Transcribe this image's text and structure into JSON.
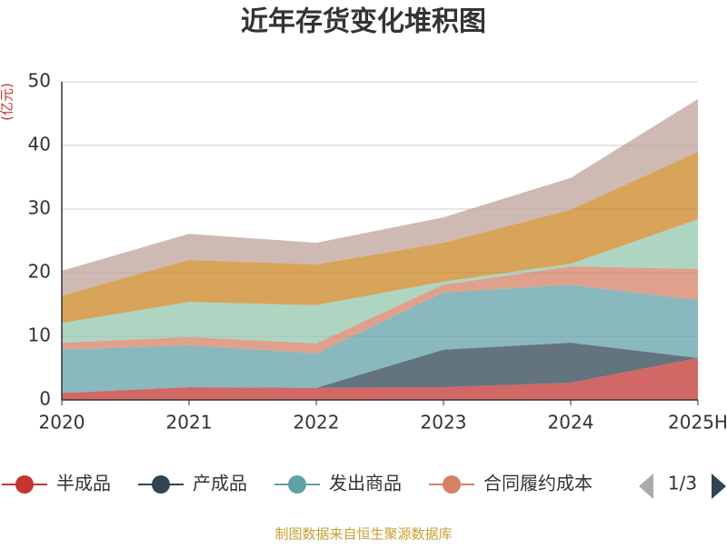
{
  "chart_data": {
    "type": "area",
    "stacked": true,
    "title": "近年存货变化堆积图",
    "y_unit": "(亿元)",
    "categories": [
      "2020",
      "2021",
      "2022",
      "2023",
      "2024",
      "2025H"
    ],
    "series": [
      {
        "name": "半成品",
        "color": "#c23531",
        "values": [
          1.1,
          2.0,
          1.9,
          2.0,
          2.7,
          6.6
        ]
      },
      {
        "name": "产成品",
        "color": "#2f4554",
        "values": [
          0,
          0,
          0,
          5.9,
          6.3,
          0
        ]
      },
      {
        "name": "发出商品",
        "color": "#61a0a8",
        "values": [
          6.8,
          6.6,
          5.4,
          9.0,
          9.1,
          9.1
        ]
      },
      {
        "name": "合同履约成本",
        "color": "#d48265",
        "values": [
          1.1,
          1.3,
          1.6,
          1.2,
          2.9,
          4.9
        ]
      },
      {
        "color": "#91c7ae",
        "values": [
          3.1,
          5.5,
          6.0,
          0.5,
          0.4,
          7.8
        ]
      },
      {
        "color": "#ca8622",
        "values": [
          4.3,
          6.6,
          6.4,
          6.1,
          8.5,
          10.6
        ]
      },
      {
        "color": "#bda29a",
        "values": [
          3.9,
          4.1,
          3.4,
          4.0,
          5.0,
          8.3
        ]
      }
    ],
    "ylim": [
      0,
      50
    ],
    "yticks": [
      0,
      10,
      20,
      30,
      40,
      50
    ],
    "grid": true,
    "legend_page": "1/3",
    "source": "制图数据来自恒生聚源数据库"
  }
}
